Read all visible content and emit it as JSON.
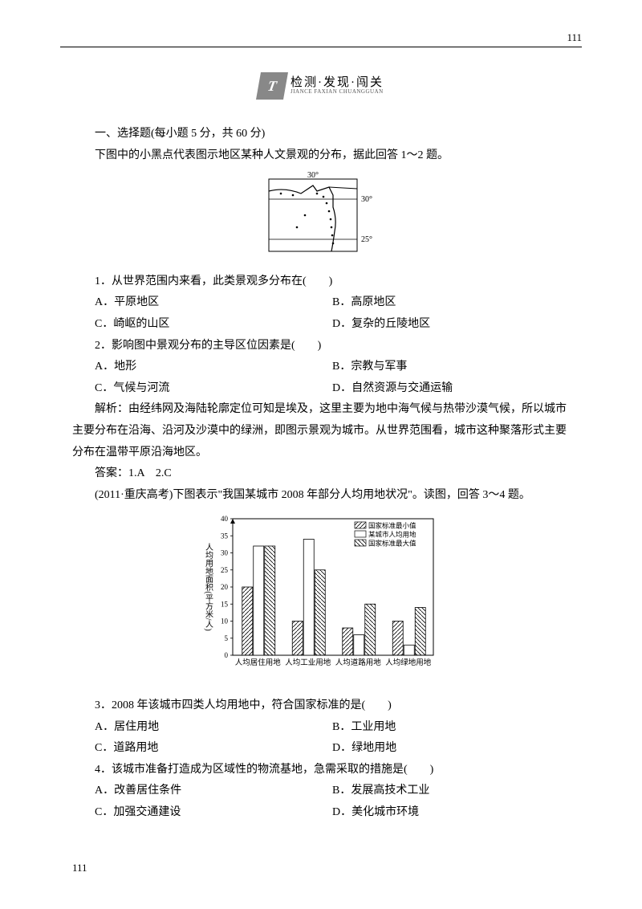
{
  "page_number": "111",
  "logo": {
    "glyph": "T",
    "main_text": "检测·发现·闯关",
    "sub_text": "JIANCE FAXIAN CHUANGGUAN"
  },
  "section1_heading": "一、选择题(每小题 5 分，共 60 分)",
  "intro1": "下图中的小黑点代表图示地区某种人文景观的分布，据此回答 1～2 题。",
  "map": {
    "top_label": "30°",
    "right_label_top": "30°",
    "right_label_bottom": "25°"
  },
  "q1": {
    "stem": "1．从世界范围内来看，此类景观多分布在(　　)",
    "A": "A．平原地区",
    "B": "B．高原地区",
    "C": "C．崎岖的山区",
    "D": "D．复杂的丘陵地区"
  },
  "q2": {
    "stem": "2．影响图中景观分布的主导区位因素是(　　)",
    "A": "A．地形",
    "B": "B．宗教与军事",
    "C": "C．气候与河流",
    "D": "D．自然资源与交通运输"
  },
  "explain1": "解析：由经纬网及海陆轮廓定位可知是埃及，这里主要为地中海气候与热带沙漠气候，所以城市主要分布在沿海、沿河及沙漠中的绿洲，即图示景观为城市。从世界范围看，城市这种聚落形式主要分布在温带平原沿海地区。",
  "answer1": "答案：1.A　2.C",
  "intro2": "(2011·重庆高考)下图表示\"我国某城市 2008 年部分人均用地状况\"。读图，回答 3～4 题。",
  "chart": {
    "ylabel": "人均用地面积(平方米/人)",
    "ymax": 40,
    "ytick_step": 5,
    "categories": [
      "人均居住用地",
      "人均工业用地",
      "人均道路用地",
      "人均绿地用地"
    ],
    "legend": [
      "国家标准最小值",
      "某城市人均用地",
      "国家标准最大值"
    ],
    "series_min": [
      20,
      10,
      8,
      10
    ],
    "series_city": [
      32,
      34,
      6,
      3
    ],
    "series_max": [
      32,
      25,
      15,
      14
    ],
    "bar_fill_min": "hatch-diag-left",
    "bar_fill_city": "white",
    "bar_fill_max": "hatch-diag-right",
    "border_color": "#000",
    "background": "#fff"
  },
  "q3": {
    "stem": "3．2008 年该城市四类人均用地中，符合国家标准的是(　　)",
    "A": "A．居住用地",
    "B": "B．工业用地",
    "C": "C．道路用地",
    "D": "D．绿地用地"
  },
  "q4": {
    "stem": "4．该城市准备打造成为区域性的物流基地，急需采取的措施是(　　)",
    "A": "A．改善居住条件",
    "B": "B．发展高技术工业",
    "C": "C．加强交通建设",
    "D": "D．美化城市环境"
  }
}
